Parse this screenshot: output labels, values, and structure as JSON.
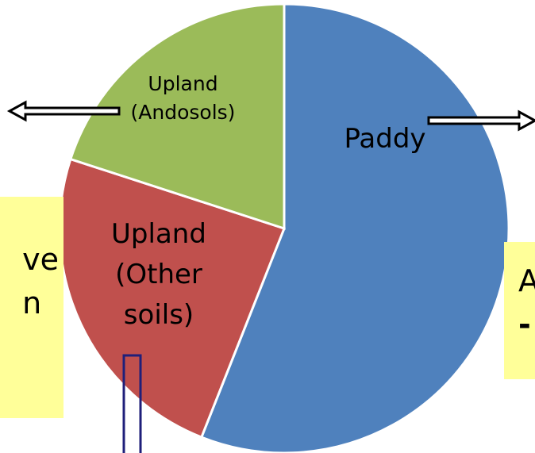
{
  "chart_data": {
    "type": "pie",
    "categories": [
      "Paddy",
      "Upland (Other soils)",
      "Upland (Andosols)"
    ],
    "values": [
      56,
      24,
      20
    ],
    "colors": [
      "#4f81bd",
      "#c0504d",
      "#9bbb59"
    ],
    "annotations": {
      "left": [
        "ve",
        "n"
      ],
      "right": [
        "A",
        "-"
      ]
    }
  }
}
